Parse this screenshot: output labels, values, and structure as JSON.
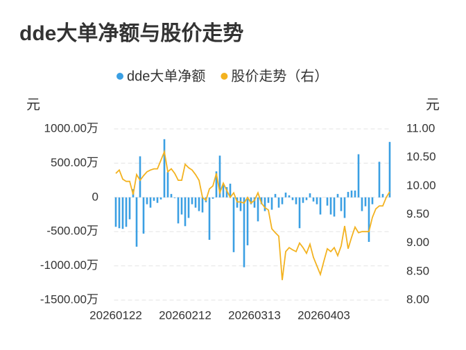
{
  "chart_data": {
    "type": "combo",
    "title": "dde大单净额与股价走势",
    "y_label": "元",
    "y2_label": "元",
    "categories": [
      "20260122",
      null,
      null,
      null,
      null,
      null,
      null,
      null,
      null,
      null,
      null,
      null,
      null,
      null,
      null,
      null,
      null,
      null,
      null,
      null,
      "20260212",
      null,
      null,
      null,
      null,
      null,
      null,
      null,
      null,
      null,
      null,
      null,
      null,
      null,
      null,
      null,
      null,
      null,
      null,
      null,
      "20260313",
      null,
      null,
      null,
      null,
      null,
      null,
      null,
      null,
      null,
      null,
      null,
      null,
      null,
      null,
      null,
      null,
      null,
      null,
      null,
      "20260403",
      null,
      null,
      null,
      null,
      null,
      null,
      null,
      null,
      null,
      null,
      null,
      null,
      null,
      null,
      null,
      null,
      null,
      null,
      null
    ],
    "series": [
      {
        "name": "dde大单净额",
        "type": "bar",
        "axis": "y",
        "color": "#3a9fe3",
        "values": [
          -430,
          -450,
          -460,
          -430,
          -320,
          120,
          -720,
          600,
          -530,
          -100,
          -150,
          -50,
          -80,
          -30,
          850,
          370,
          50,
          -10,
          -380,
          -250,
          -420,
          -300,
          -100,
          -150,
          -200,
          -220,
          -70,
          -620,
          -20,
          380,
          610,
          200,
          150,
          200,
          -800,
          -150,
          -200,
          -1020,
          -700,
          -100,
          -150,
          -350,
          -100,
          -200,
          -80,
          -180,
          50,
          -150,
          -100,
          70,
          30,
          -40,
          -100,
          -450,
          -80,
          -40,
          60,
          -60,
          -100,
          -250,
          0,
          -120,
          -250,
          -280,
          50,
          -200,
          -300,
          80,
          100,
          100,
          630,
          -200,
          -130,
          -650,
          -100,
          0,
          520,
          50,
          0,
          810
        ]
      },
      {
        "name": "股价走势（右）",
        "type": "line",
        "axis": "y2",
        "color": "#f3b21f",
        "values": [
          10.22,
          10.28,
          10.12,
          10.08,
          10.08,
          9.85,
          10.2,
          10.1,
          10.18,
          10.25,
          10.28,
          10.3,
          10.3,
          10.45,
          10.6,
          10.25,
          10.3,
          10.22,
          10.1,
          10.1,
          10.38,
          10.32,
          10.28,
          10.2,
          10.1,
          9.8,
          9.75,
          9.95,
          10.0,
          10.22,
          9.88,
          10.05,
          9.92,
          9.8,
          9.88,
          9.72,
          9.72,
          9.7,
          9.8,
          9.7,
          9.75,
          9.88,
          9.7,
          9.62,
          9.58,
          9.25,
          9.18,
          9.12,
          8.35,
          8.85,
          8.92,
          8.88,
          8.85,
          9.0,
          8.92,
          8.82,
          8.98,
          8.75,
          8.6,
          8.45,
          8.68,
          8.9,
          8.85,
          8.92,
          8.78,
          8.95,
          9.3,
          8.9,
          9.1,
          9.28,
          9.18,
          9.2,
          9.2,
          9.2,
          9.45,
          9.6,
          9.65,
          9.65,
          9.8,
          9.9
        ]
      }
    ],
    "ylim": [
      -1500,
      1000
    ],
    "yticks": [
      {
        "value": -1500,
        "label": "-1500.00万"
      },
      {
        "value": -1000,
        "label": "-1000.00万"
      },
      {
        "value": -500,
        "label": "-500.00万"
      },
      0,
      {
        "value": 500,
        "label": "500.00万"
      },
      {
        "value": 1000,
        "label": "1000.00万"
      }
    ],
    "y2lim": [
      8,
      11
    ],
    "y2ticks": [
      {
        "value": 8,
        "label": "8.00"
      },
      {
        "value": 8.5,
        "label": "8.50"
      },
      {
        "value": 9,
        "label": "9.00"
      },
      {
        "value": 9.5,
        "label": "9.50"
      },
      {
        "value": 10,
        "label": "10.00"
      },
      {
        "value": 10.5,
        "label": "10.50"
      },
      {
        "value": 11,
        "label": "11.00"
      }
    ],
    "grid": true
  }
}
